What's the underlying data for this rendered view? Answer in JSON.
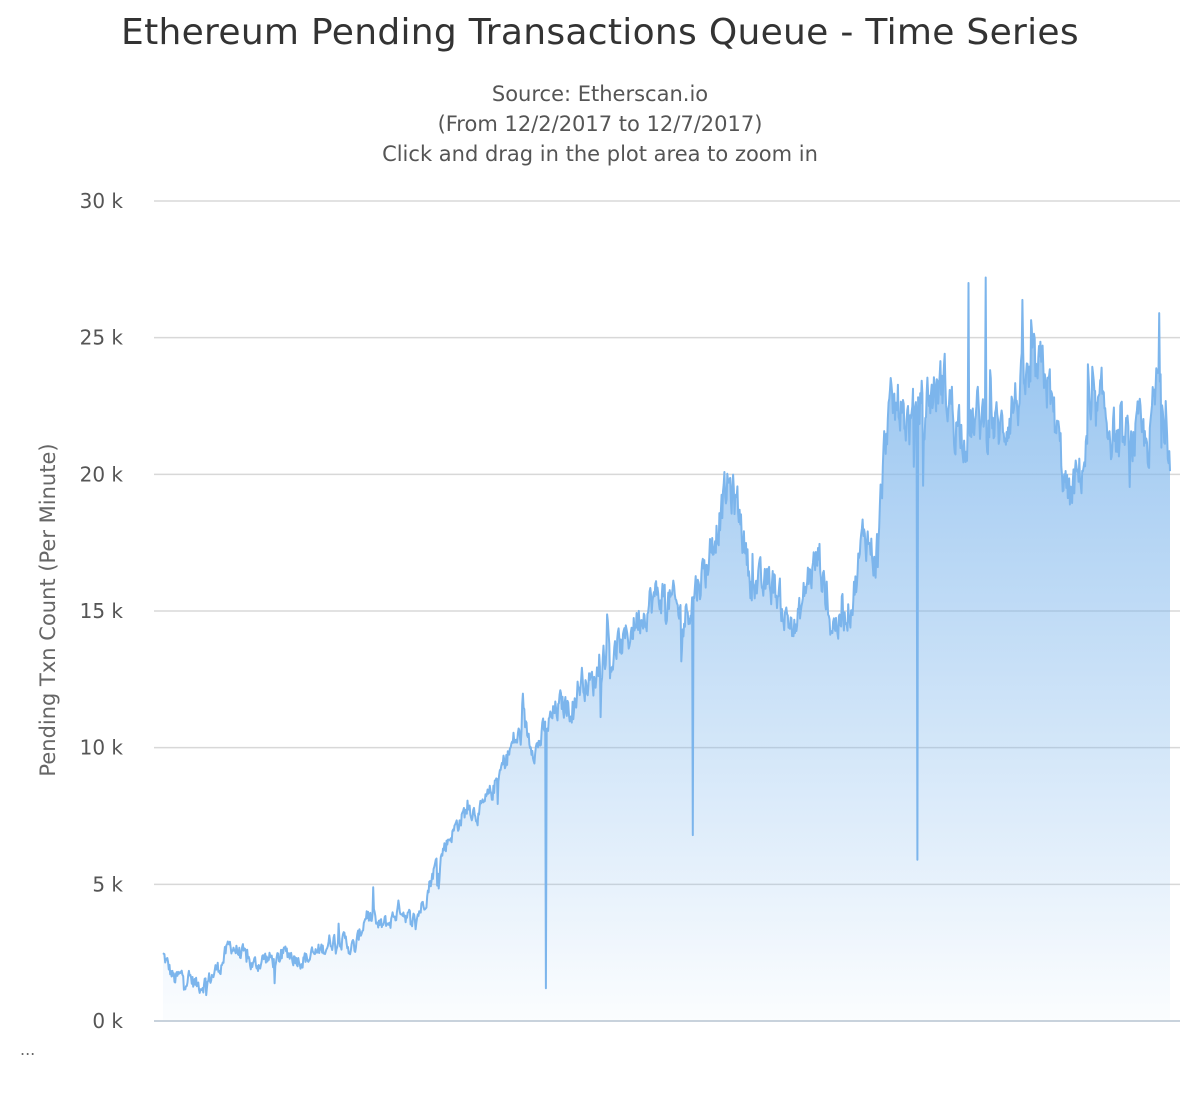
{
  "chart_data": {
    "type": "area",
    "title": "Ethereum Pending Transactions Queue - Time Series",
    "subtitle": [
      "Source: Etherscan.io",
      "(From 12/2/2017 to 12/7/2017)",
      "Click and drag in the plot area to zoom in"
    ],
    "ylabel": "Pending Txn Count (Per Minute)",
    "xlabel": "",
    "ylim": [
      0,
      30000
    ],
    "yticks": [
      0,
      5000,
      10000,
      15000,
      20000,
      25000,
      30000
    ],
    "ytick_labels": [
      "0 k",
      "5 k",
      "10 k",
      "15 k",
      "20 k",
      "25 k",
      "30 k"
    ],
    "x_range": [
      "12/2/2017",
      "12/7/2017"
    ],
    "grid": true,
    "legend": "none",
    "series": [
      {
        "values": [
          2400,
          1500,
          1700,
          1300,
          1500,
          2000,
          2800,
          2400,
          2000,
          2300,
          2200,
          2500,
          2300,
          2300,
          2600,
          3000,
          2900,
          2600,
          4000,
          3400,
          3600,
          4200,
          3600,
          4300,
          5600,
          6500,
          7200,
          7800,
          7600,
          8300,
          9300,
          10200,
          10600,
          10000,
          10800,
          11500,
          11500,
          12500,
          12300,
          13600,
          13400,
          14000,
          14800,
          15300,
          15600,
          15300,
          14700,
          15800,
          16600,
          18200,
          19600,
          18500,
          16000,
          15800,
          16000,
          14800,
          14300,
          16200,
          17000,
          14500,
          14600,
          15500,
          18000,
          16800,
          22000,
          22500,
          21800,
          22600,
          23000,
          23300,
          22200,
          21500,
          22000,
          22000,
          21500,
          22500,
          23000,
          23500,
          23700,
          21500,
          19000,
          20000,
          21500,
          22500,
          21500,
          21000,
          21500,
          21000,
          23500,
          21000
        ],
        "minima": [
          {
            "x_frac": 0.38,
            "value": 1200
          },
          {
            "x_frac": 0.526,
            "value": 6800
          },
          {
            "x_frac": 0.749,
            "value": 5900
          }
        ],
        "peaks": [
          {
            "x_frac": 0.8,
            "value": 27000
          },
          {
            "x_frac": 0.817,
            "value": 27200
          },
          {
            "x_frac": 0.989,
            "value": 25900
          }
        ]
      }
    ],
    "colors": {
      "line": "#7cb5ec",
      "area_top": "#7cb5ec",
      "grid": "#d8d8d8",
      "axis": "#c8d2dc",
      "text": "#333333"
    }
  },
  "menu": {
    "label": "..."
  }
}
